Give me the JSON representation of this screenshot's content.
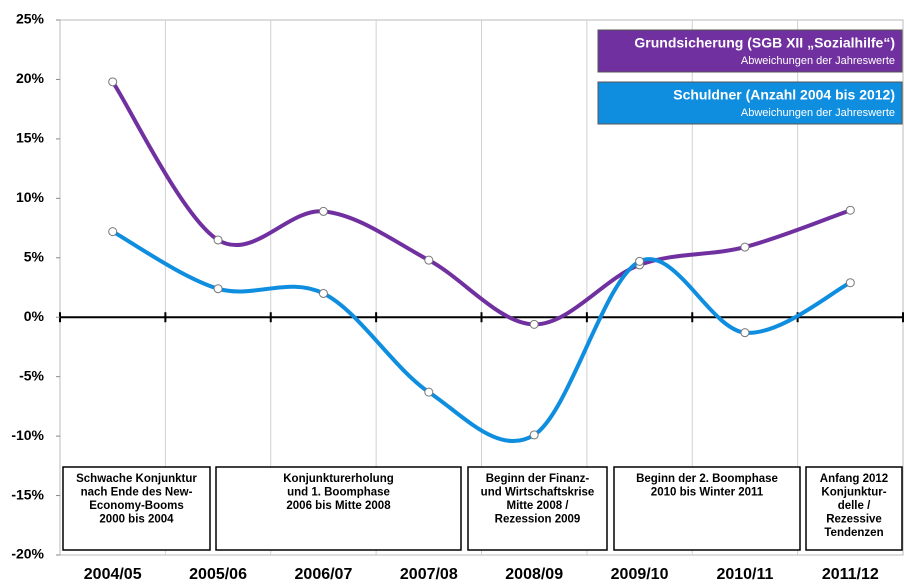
{
  "chart_data": {
    "type": "line",
    "categories": [
      "2004/05",
      "2005/06",
      "2006/07",
      "2007/08",
      "2008/09",
      "2009/10",
      "2010/11",
      "2011/12"
    ],
    "series": [
      {
        "name": "Grundsicherung (SGB XII „Sozialhilfe“)",
        "note": "Abweichungen der Jahreswerte",
        "color": "#7030a0",
        "values": [
          19.8,
          6.5,
          8.9,
          4.8,
          -0.6,
          4.4,
          5.9,
          9.0
        ]
      },
      {
        "name": "Schuldner  (Anzahl 2004 bis 2012)",
        "note": "Abweichungen der Jahreswerte",
        "color": "#0f8ee0",
        "values": [
          7.2,
          2.4,
          2.0,
          -6.3,
          -9.9,
          4.7,
          -1.3,
          2.9
        ]
      }
    ],
    "ylim": [
      -20,
      25
    ],
    "yticks": [
      {
        "value": -20,
        "label": "-20%"
      },
      {
        "value": -15,
        "label": "-15%"
      },
      {
        "value": -10,
        "label": "-10%"
      },
      {
        "value": -5,
        "label": "-5%"
      },
      {
        "value": 0,
        "label": "0%"
      },
      {
        "value": 5,
        "label": "5%"
      },
      {
        "value": 10,
        "label": "10%"
      },
      {
        "value": 15,
        "label": "15%"
      },
      {
        "value": 20,
        "label": "20%"
      },
      {
        "value": 25,
        "label": "25%"
      }
    ],
    "annotations": [
      {
        "lines": [
          "Schwache Konjunktur",
          "nach Ende des New-",
          "Economy-Booms",
          "2000 bis 2004"
        ]
      },
      {
        "lines": [
          "Konjunkturerholung",
          "und 1. Boomphase",
          "2006 bis Mitte 2008"
        ]
      },
      {
        "lines": [
          "Beginn der Finanz-",
          "und Wirtschaftskrise",
          "Mitte 2008 /",
          "Rezession 2009"
        ]
      },
      {
        "lines": [
          "Beginn der 2. Boomphase",
          "2010 bis Winter 2011"
        ]
      },
      {
        "lines": [
          "Anfang 2012",
          "Konjunktur-",
          "delle /",
          "Rezessive",
          "Tendenzen"
        ]
      }
    ]
  }
}
